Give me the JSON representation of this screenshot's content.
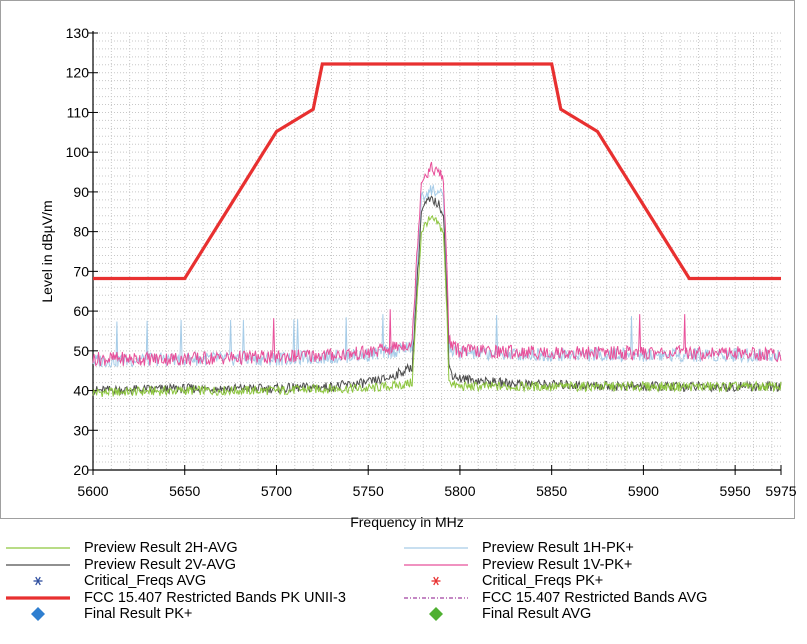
{
  "chart_data": {
    "type": "line",
    "title": "",
    "xlabel": "Frequency in MHz",
    "ylabel": "Level in dBµV/m",
    "xlim": [
      5600,
      5975
    ],
    "ylim": [
      20,
      130
    ],
    "grid": true,
    "legend_position": "bottom",
    "x_ticks": [
      5600,
      5650,
      5700,
      5750,
      5800,
      5850,
      5900,
      5950,
      5975
    ],
    "x_tick_labels": [
      "5600",
      "5650",
      "5700",
      "5750",
      "5800",
      "5850",
      "5900",
      "5950",
      "5975"
    ],
    "y_ticks": [
      20,
      30,
      40,
      50,
      60,
      70,
      80,
      90,
      100,
      110,
      120,
      130
    ],
    "y_tick_labels": [
      "20",
      "30",
      "40",
      "50",
      "60",
      "70",
      "80",
      "90",
      "100",
      "110",
      "120",
      "130"
    ],
    "series": [
      {
        "name": "Preview Result 2H-AVG",
        "color": "#8dc63f",
        "style": "line",
        "x": [
          5600,
          5650,
          5700,
          5730,
          5750,
          5760,
          5770,
          5774,
          5776,
          5779,
          5782,
          5785,
          5788,
          5791,
          5793,
          5794,
          5796,
          5800,
          5820,
          5850,
          5900,
          5950,
          5975
        ],
        "y": [
          39.5,
          40,
          40,
          40.5,
          40.5,
          41,
          41.5,
          42,
          58,
          80,
          82.5,
          83,
          82,
          80,
          58,
          43,
          41.5,
          41,
          41,
          41,
          41,
          41,
          41
        ]
      },
      {
        "name": "Preview Result 2V-AVG",
        "color": "#4d4d4d",
        "style": "line",
        "x": [
          5600,
          5650,
          5700,
          5730,
          5750,
          5760,
          5770,
          5774,
          5776,
          5779,
          5782,
          5785,
          5788,
          5791,
          5793,
          5794,
          5796,
          5800,
          5820,
          5850,
          5900,
          5950,
          5975
        ],
        "y": [
          40,
          40.5,
          40.5,
          41,
          42,
          43,
          45,
          46,
          62,
          85,
          87.5,
          88,
          87,
          85,
          62,
          46,
          44,
          43,
          42,
          41.5,
          41,
          41,
          41
        ]
      },
      {
        "name": "Preview Result 1H-PK+",
        "color": "#a6cce8",
        "style": "line",
        "x": [
          5600,
          5650,
          5700,
          5730,
          5750,
          5765,
          5774,
          5776,
          5779,
          5782,
          5785,
          5788,
          5791,
          5793,
          5794,
          5796,
          5800,
          5850,
          5900,
          5950,
          5975
        ],
        "y": [
          47.5,
          48,
          48,
          48.5,
          49,
          50,
          51,
          66,
          88,
          90,
          90.5,
          90,
          88,
          66,
          51,
          50,
          49.5,
          49,
          49,
          49,
          49
        ]
      },
      {
        "name": "Preview Result 1V-PK+",
        "color": "#e8509a",
        "style": "line",
        "x": [
          5600,
          5650,
          5700,
          5730,
          5750,
          5765,
          5774,
          5776,
          5779,
          5782,
          5785,
          5788,
          5791,
          5793,
          5794,
          5796,
          5800,
          5850,
          5900,
          5950,
          5975
        ],
        "y": [
          48,
          48,
          48.5,
          49,
          49.5,
          51,
          52,
          70,
          93,
          95,
          96,
          95,
          93,
          70,
          53,
          51,
          50,
          49.5,
          49.5,
          49.5,
          49
        ]
      },
      {
        "name": "FCC 15.407 Restricted Bands PK UNII-3",
        "color": "#e83030",
        "style": "thick",
        "x": [
          5600,
          5650,
          5700,
          5720,
          5725,
          5850,
          5855,
          5875,
          5925,
          5975
        ],
        "y": [
          68.2,
          68.2,
          105.2,
          110.8,
          122.2,
          122.2,
          110.8,
          105.2,
          68.2,
          68.2
        ]
      }
    ],
    "legend": [
      {
        "label": "Preview Result 2H-AVG",
        "symbol": "line",
        "color": "#8dc63f"
      },
      {
        "label": "Preview Result 1H-PK+",
        "symbol": "line",
        "color": "#a6cce8"
      },
      {
        "label": "Preview Result 2V-AVG",
        "symbol": "line",
        "color": "#4d4d4d"
      },
      {
        "label": "Preview Result 1V-PK+",
        "symbol": "line",
        "color": "#e8509a"
      },
      {
        "label": "Critical_Freqs AVG",
        "symbol": "asterisk",
        "color": "#2f4f9f"
      },
      {
        "label": "Critical_Freqs PK+",
        "symbol": "asterisk",
        "color": "#e83030"
      },
      {
        "label": "FCC 15.407 Restricted Bands PK UNII-3",
        "symbol": "thick-line",
        "color": "#e83030"
      },
      {
        "label": "FCC 15.407 Restricted Bands AVG",
        "symbol": "dash-dot",
        "color": "#a040a0"
      },
      {
        "label": "Final Result PK+",
        "symbol": "diamond",
        "color": "#2f7fd0"
      },
      {
        "label": "Final Result AVG",
        "symbol": "diamond",
        "color": "#4fb030"
      }
    ]
  }
}
